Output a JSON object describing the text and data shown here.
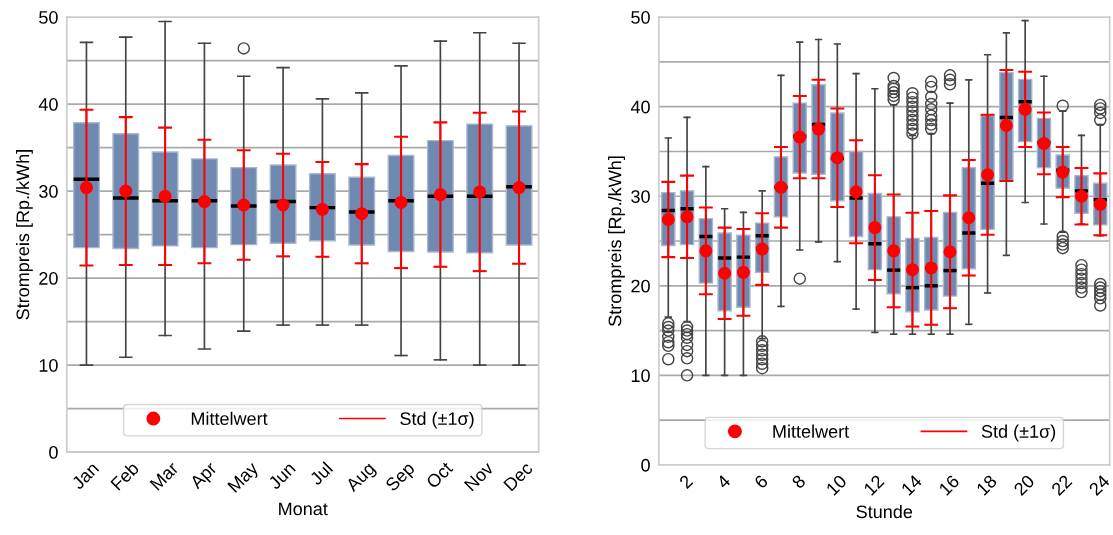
{
  "chart_data": [
    {
      "type": "box",
      "xlabel": "Monat",
      "ylabel": "Strompreis [Rp./kWh]",
      "categories": [
        "Jan",
        "Feb",
        "Mar",
        "Apr",
        "May",
        "Jun",
        "Jul",
        "Aug",
        "Sep",
        "Oct",
        "Nov",
        "Dec"
      ],
      "ylim": [
        0,
        50
      ],
      "yticks": [
        0,
        {
          "value": 5,
          "label": null
        },
        10,
        {
          "value": 15,
          "label": null
        },
        20,
        {
          "value": 25,
          "label": null
        },
        30,
        {
          "value": 35,
          "label": null
        },
        40,
        {
          "value": 45,
          "label": null
        },
        50
      ],
      "grid": "y",
      "legend": "bottom",
      "series": [
        {
          "color": "#7089b1",
          "boxes": [
            {
              "low": 10.0,
              "q1": 23.5,
              "median": 31.35,
              "q3": 37.85,
              "high": 47.1
            },
            {
              "low": 10.9,
              "q1": 23.4,
              "median": 29.2,
              "q3": 36.6,
              "high": 47.7
            },
            {
              "low": 13.4,
              "q1": 23.7,
              "median": 28.9,
              "q3": 34.5,
              "high": 49.5
            },
            {
              "low": 11.85,
              "q1": 23.5,
              "median": 28.9,
              "q3": 33.7,
              "high": 47.0
            },
            {
              "low": 13.9,
              "q1": 23.85,
              "median": 28.3,
              "q3": 32.7,
              "high": 43.2,
              "outliers": [
                46.4
              ]
            },
            {
              "low": 14.6,
              "q1": 24.0,
              "median": 28.8,
              "q3": 33.0,
              "high": 44.2
            },
            {
              "low": 14.6,
              "q1": 24.3,
              "median": 28.1,
              "q3": 32.0,
              "high": 40.6
            },
            {
              "low": 14.6,
              "q1": 23.8,
              "median": 27.6,
              "q3": 31.6,
              "high": 41.3
            },
            {
              "low": 11.1,
              "q1": 23.05,
              "median": 28.9,
              "q3": 34.1,
              "high": 44.4
            },
            {
              "low": 10.6,
              "q1": 23.0,
              "median": 29.4,
              "q3": 35.8,
              "high": 47.25
            },
            {
              "low": 10.0,
              "q1": 22.9,
              "median": 29.4,
              "q3": 37.7,
              "high": 48.2
            },
            {
              "low": 10.0,
              "q1": 23.8,
              "median": 30.5,
              "q3": 37.5,
              "high": 47.0
            }
          ]
        },
        {
          "type": "scatter",
          "name": "Mittelwert",
          "color": "#ff0000",
          "marker": "circle",
          "values": [
            30.4,
            30.0,
            29.4,
            28.8,
            28.4,
            28.4,
            27.9,
            27.4,
            28.7,
            29.6,
            29.9,
            30.4
          ],
          "errors": [
            8.95,
            8.5,
            7.9,
            7.1,
            6.3,
            5.9,
            5.45,
            5.7,
            7.55,
            8.3,
            9.1,
            8.75
          ]
        }
      ],
      "annotations": [
        "Std (±1σ)"
      ]
    },
    {
      "type": "box",
      "xlabel": "Stunde",
      "ylabel": "Strompreis [Rp./kWh]",
      "categories": [
        null,
        "2",
        null,
        "4",
        null,
        "6",
        null,
        "8",
        null,
        "10",
        null,
        "12",
        null,
        "14",
        null,
        "16",
        null,
        "18",
        null,
        "20",
        null,
        "22",
        null,
        "24"
      ],
      "ylim": [
        0,
        50
      ],
      "yticks": [
        0,
        {
          "value": 5,
          "label": null
        },
        10,
        {
          "value": 15,
          "label": null
        },
        20,
        {
          "value": 25,
          "label": null
        },
        30,
        {
          "value": 35,
          "label": null
        },
        40,
        {
          "value": 45,
          "label": null
        },
        50
      ],
      "grid": "y",
      "legend": "bottom",
      "series": [
        {
          "color": "#7089b1",
          "boxes": [
            {
              "low": 16.5,
              "q1": 24.5,
              "median": 28.4,
              "q3": 30.4,
              "high": 36.5,
              "outliers": [
                15.8,
                15.4,
                15.0,
                14.3,
                13.7,
                13.3,
                11.8
              ]
            },
            {
              "low": 16.0,
              "q1": 24.6,
              "median": 28.6,
              "q3": 30.6,
              "high": 38.8,
              "outliers": [
                15.4,
                15.0,
                14.6,
                14.2,
                13.4,
                12.7,
                11.9,
                10.0
              ]
            },
            {
              "low": 10.0,
              "q1": 20.3,
              "median": 25.5,
              "q3": 27.5,
              "high": 33.3
            },
            {
              "low": 10.0,
              "q1": 17.2,
              "median": 23.1,
              "q3": 25.9,
              "high": 28.6
            },
            {
              "low": 10.0,
              "q1": 17.6,
              "median": 23.2,
              "q3": 25.65,
              "high": 28.2
            },
            {
              "low": 14.1,
              "q1": 21.5,
              "median": 25.6,
              "q3": 27.0,
              "high": 30.6,
              "outliers": [
                13.8,
                13.3,
                12.8,
                12.3,
                11.8,
                11.3,
                10.8
              ]
            },
            {
              "low": 17.7,
              "q1": 27.7,
              "median": 31.0,
              "q3": 34.4,
              "high": 43.5
            },
            {
              "low": 24.0,
              "q1": 32.6,
              "median": 36.7,
              "q3": 40.4,
              "high": 47.2,
              "outliers": [
                20.8
              ]
            },
            {
              "low": 24.9,
              "q1": 32.45,
              "median": 38.0,
              "q3": 42.45,
              "high": 47.5
            },
            {
              "low": 22.7,
              "q1": 29.5,
              "median": 34.2,
              "q3": 39.3,
              "high": 47.0
            },
            {
              "low": 17.4,
              "q1": 25.5,
              "median": 29.8,
              "q3": 35.0,
              "high": 43.7
            },
            {
              "low": 14.8,
              "q1": 21.8,
              "median": 24.7,
              "q3": 30.3,
              "high": 42.0
            },
            {
              "low": 14.6,
              "q1": 19.1,
              "median": 21.75,
              "q3": 27.7,
              "high": 40.2,
              "outliers": [
                43.2,
                42.3,
                42.0,
                41.6,
                41.2,
                40.8
              ]
            },
            {
              "low": 14.6,
              "q1": 17.1,
              "median": 19.8,
              "q3": 25.3,
              "high": 36.8,
              "outliers": [
                41.5,
                41.0,
                40.5,
                40.0,
                39.5,
                39.0,
                38.5,
                38.0,
                37.5,
                37.0
              ]
            },
            {
              "low": 14.6,
              "q1": 17.3,
              "median": 20.0,
              "q3": 25.4,
              "high": 37.0,
              "outliers": [
                42.8,
                42.2,
                41.1,
                40.3,
                39.7,
                39.0,
                38.5,
                38.0,
                37.5
              ]
            },
            {
              "low": 14.6,
              "q1": 18.85,
              "median": 21.7,
              "q3": 28.2,
              "high": 40.4,
              "outliers": [
                43.5,
                43.0,
                42.5
              ]
            },
            {
              "low": 15.7,
              "q1": 21.9,
              "median": 25.9,
              "q3": 33.2,
              "high": 43.0
            },
            {
              "low": 19.2,
              "q1": 26.3,
              "median": 31.45,
              "q3": 39.0,
              "high": 45.8
            },
            {
              "low": 23.4,
              "q1": 31.75,
              "median": 38.8,
              "q3": 43.8,
              "high": 48.25
            },
            {
              "low": 29.3,
              "q1": 36.1,
              "median": 40.55,
              "q3": 43.05,
              "high": 49.6
            },
            {
              "low": 26.9,
              "q1": 33.2,
              "median": 36.0,
              "q3": 38.7,
              "high": 43.4
            },
            {
              "low": 26.0,
              "q1": 30.9,
              "median": 32.9,
              "q3": 34.6,
              "high": 39.5,
              "outliers": [
                40.1,
                25.5,
                25.0,
                24.6,
                24.2
              ]
            },
            {
              "low": 26.9,
              "q1": 28.1,
              "median": 30.6,
              "q3": 32.3,
              "high": 36.8,
              "outliers": [
                22.3,
                21.8,
                21.3,
                20.8,
                20.3,
                19.8,
                19.3
              ]
            },
            {
              "low": 25.6,
              "q1": 26.8,
              "median": 29.6,
              "q3": 31.45,
              "high": 38.0,
              "outliers": [
                40.2,
                39.8,
                39.3,
                38.5,
                20.2,
                19.8,
                19.4,
                19.0,
                18.6,
                17.8
              ]
            }
          ]
        },
        {
          "type": "scatter",
          "name": "Mittelwert",
          "color": "#ff0000",
          "marker": "circle",
          "values": [
            27.4,
            27.7,
            23.9,
            21.4,
            21.5,
            24.1,
            31.0,
            36.6,
            37.5,
            34.3,
            30.5,
            26.5,
            23.9,
            21.8,
            22.0,
            23.8,
            27.6,
            32.4,
            37.9,
            39.7,
            35.9,
            32.7,
            30.0,
            29.1
          ],
          "errors": [
            4.2,
            4.6,
            4.85,
            5.1,
            4.85,
            4.0,
            4.5,
            4.6,
            5.5,
            5.5,
            5.75,
            5.85,
            6.3,
            6.35,
            6.35,
            6.3,
            6.45,
            6.7,
            6.2,
            4.2,
            3.45,
            2.8,
            3.15,
            3.45
          ]
        }
      ],
      "annotations": [
        "Std (±1σ)"
      ]
    }
  ]
}
